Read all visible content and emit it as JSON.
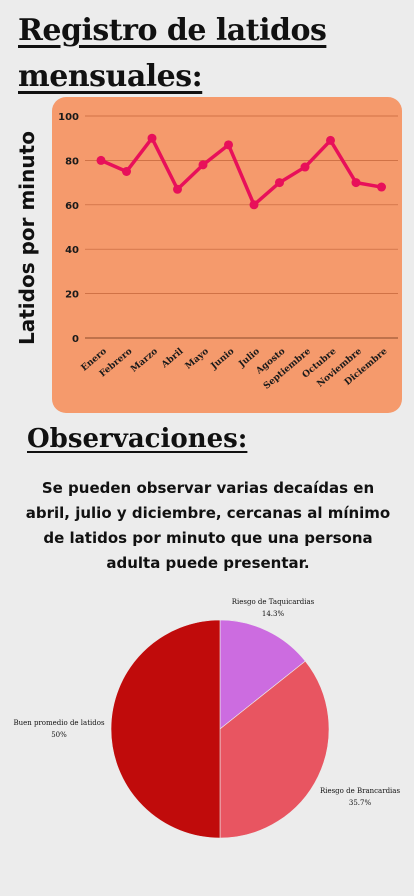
{
  "header": {
    "title_line1": "Registro de latidos",
    "title_line2": "mensuales:"
  },
  "chart_data": [
    {
      "type": "line",
      "categories": [
        "Enero",
        "Febrero",
        "Marzo",
        "Abril",
        "Mayo",
        "Junio",
        "Julio",
        "Agosto",
        "Septiembre",
        "Octubre",
        "Noviembre",
        "Diciembre"
      ],
      "values": [
        80,
        75,
        90,
        67,
        78,
        87,
        60,
        70,
        77,
        89,
        70,
        68
      ],
      "ylabel": "Latidos por minuto",
      "ylim": [
        0,
        100
      ],
      "yticks": [
        0,
        20,
        40,
        60,
        80,
        100
      ],
      "grid": true,
      "line_color": "#e8105a",
      "background": "#f59a6c"
    },
    {
      "type": "pie",
      "slices": [
        {
          "label": "Riesgo de Taquicardias",
          "value": 14.3,
          "pct": "14.3%",
          "color": "#cc6ce0"
        },
        {
          "label": "Riesgo de Brancardias",
          "value": 35.7,
          "pct": "35.7%",
          "color": "#e85561"
        },
        {
          "label": "Buen promedio de latidos",
          "value": 50,
          "pct": "50%",
          "color": "#c00b0b"
        }
      ]
    }
  ],
  "observations": {
    "title": "Observaciones:",
    "text": "Se pueden observar varias decaídas en abril, julio y diciembre, cercanas al mínimo de latidos por minuto que una persona adulta puede presentar."
  }
}
